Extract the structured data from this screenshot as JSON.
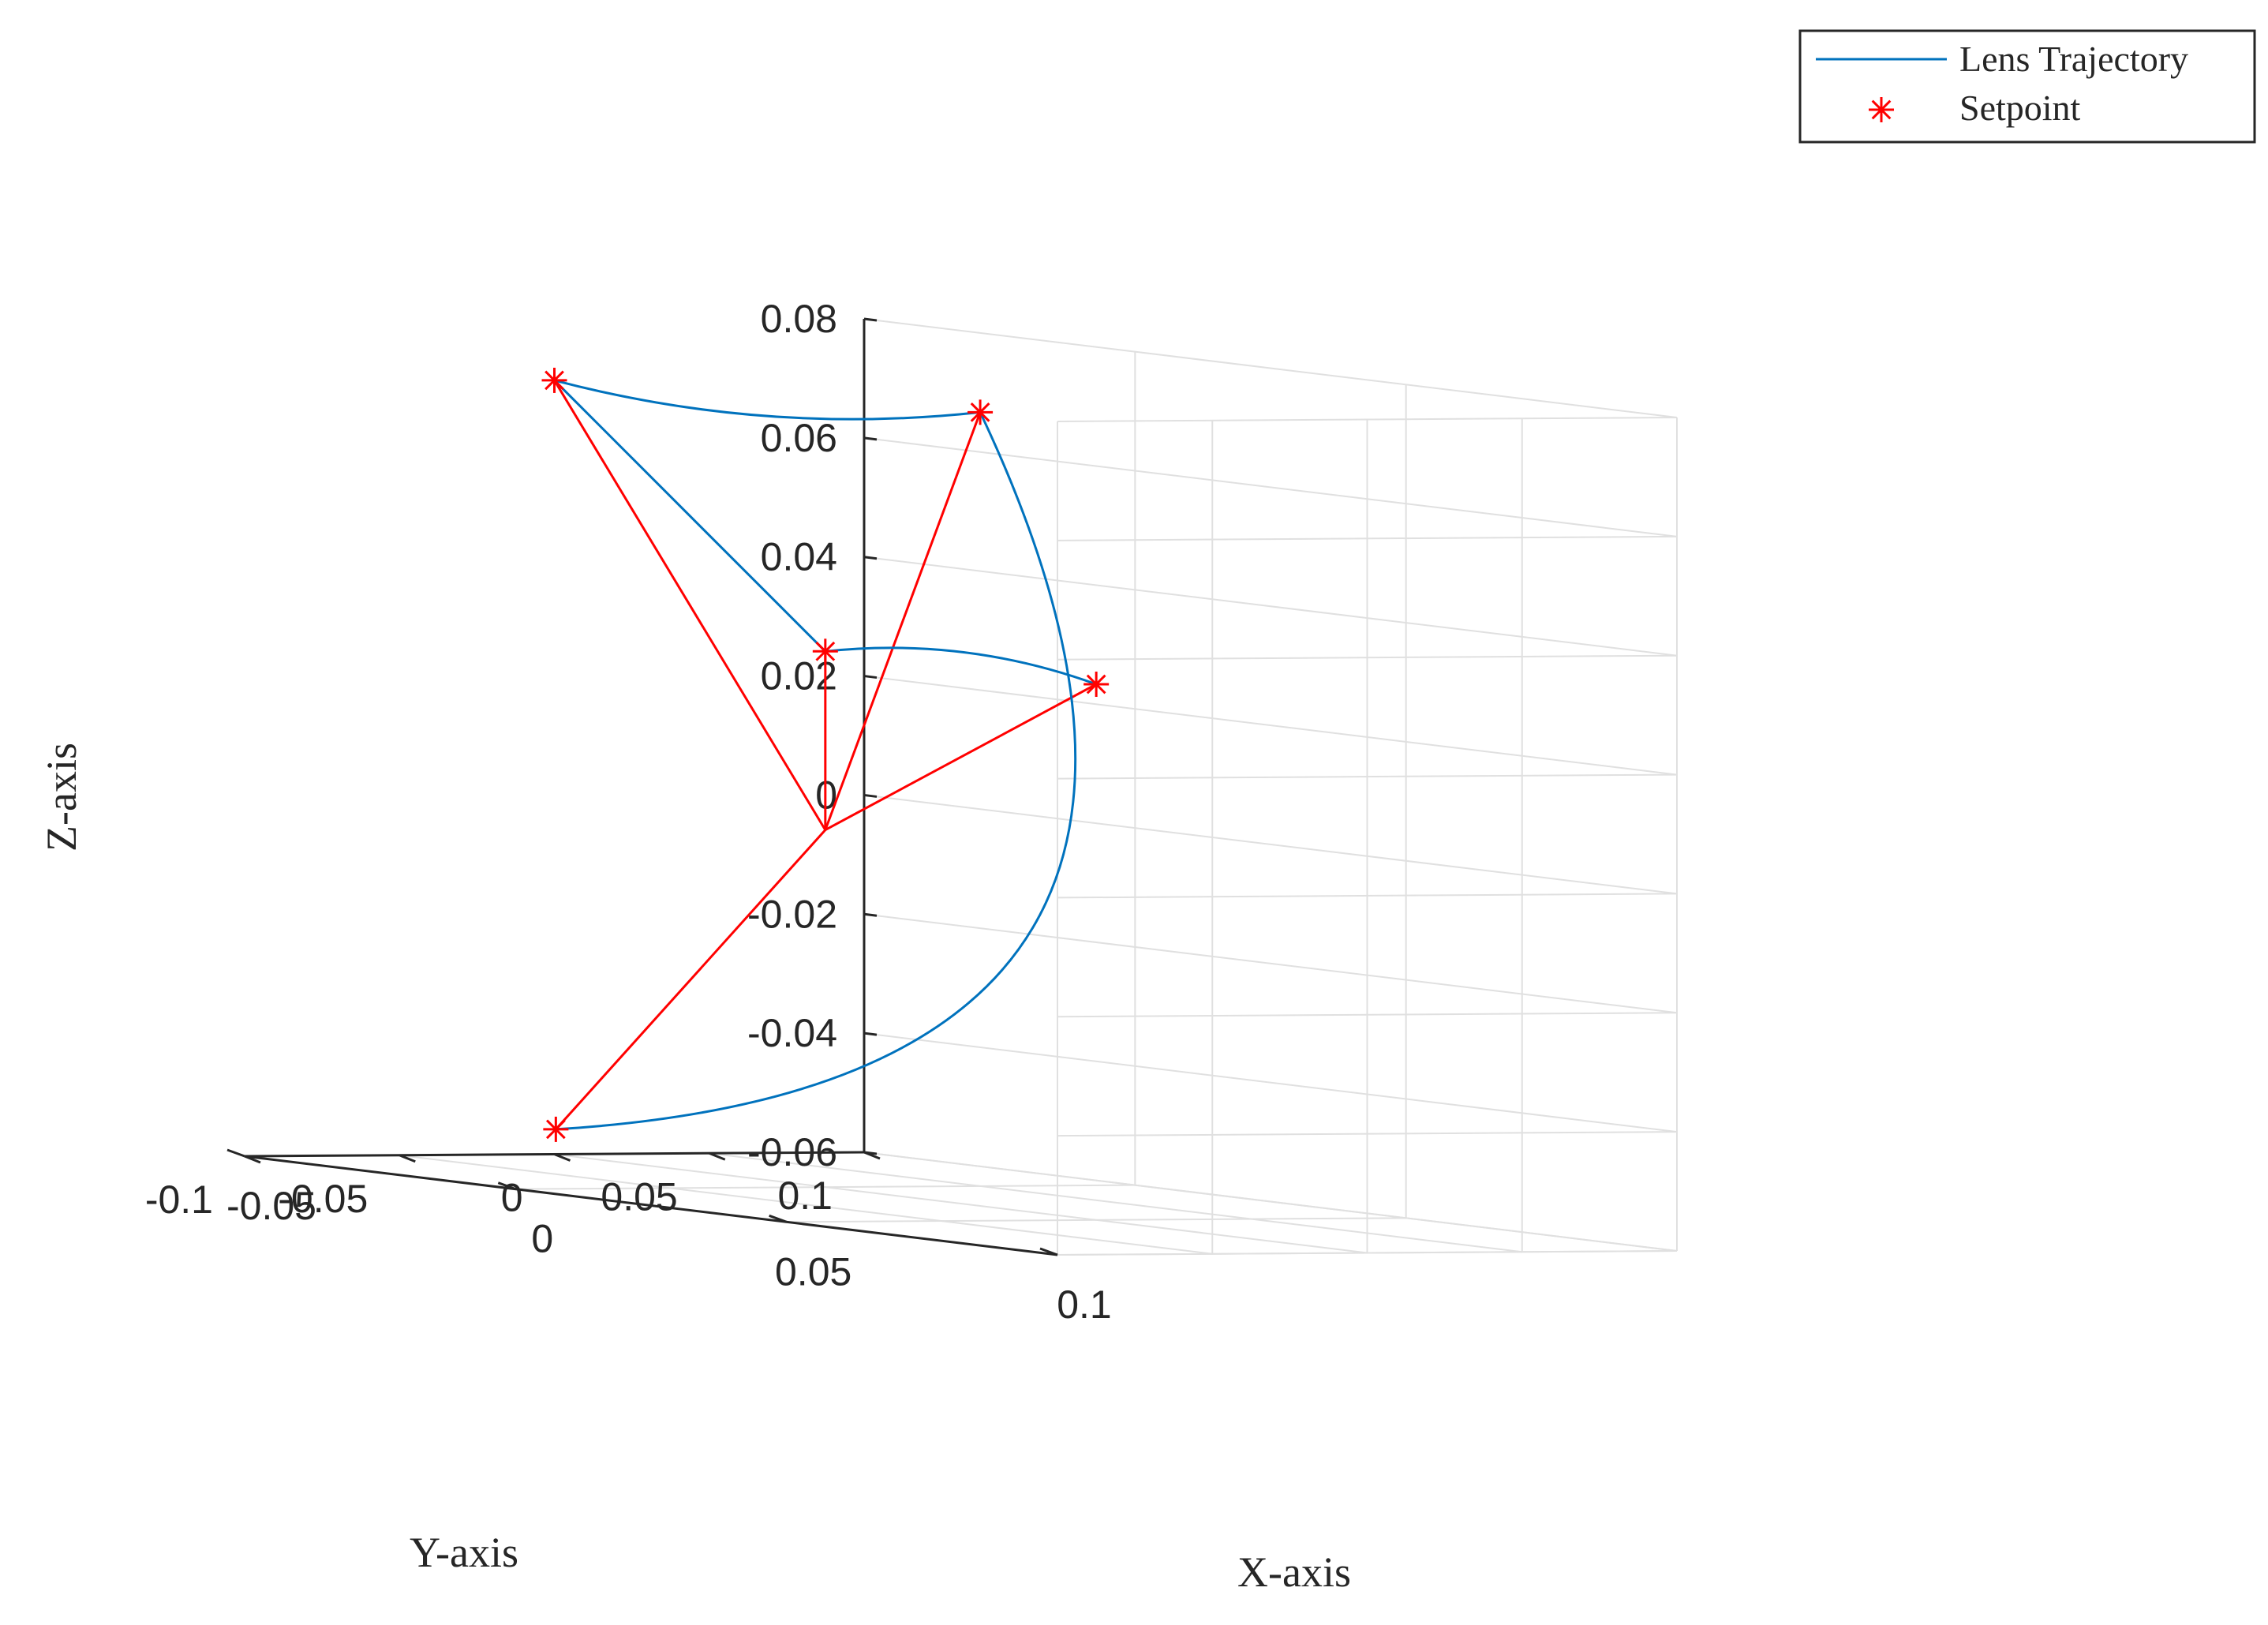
{
  "chart_data": {
    "type": "line3d",
    "xlabel": "X-axis",
    "ylabel": "Y-axis",
    "zlabel": "Z-axis",
    "xlim": [
      -0.05,
      0.1
    ],
    "ylim": [
      -0.1,
      0.1
    ],
    "zlim": [
      -0.06,
      0.08
    ],
    "x_ticks": [
      "-0.05",
      "0",
      "0.05",
      "0.1"
    ],
    "y_ticks": [
      "-0.1",
      "-0.05",
      "0",
      "0.05",
      "0.1"
    ],
    "z_ticks": [
      "-0.06",
      "-0.04",
      "-0.02",
      "0",
      "0.02",
      "0.04",
      "0.06",
      "0.08"
    ],
    "grid": true,
    "legend": {
      "placement": "top-right",
      "entries": [
        {
          "name": "Lens Trajectory",
          "color": "#0072BD",
          "marker": "line"
        },
        {
          "name": "Setpoint",
          "color": "#FF0000",
          "marker": "asterisk"
        }
      ]
    },
    "origin": [
      0,
      0,
      0
    ],
    "setpoints": [
      {
        "x": -0.05,
        "y": 0.0,
        "z": 0.07
      },
      {
        "x": 0.0,
        "y": 0.05,
        "z": 0.07
      },
      {
        "x": 0.0,
        "y": 0.0,
        "z": 0.03
      },
      {
        "x": 0.05,
        "y": 0.0,
        "z": 0.03
      },
      {
        "x": 0.0,
        "y": -0.087,
        "z": -0.05
      }
    ],
    "trajectory_segments": [
      {
        "from": 0,
        "to": 1,
        "shape": "arc"
      },
      {
        "from": 1,
        "to": 4,
        "shape": "arc"
      },
      {
        "from": 0,
        "to": 2,
        "shape": "straight"
      },
      {
        "from": 2,
        "to": 3,
        "shape": "arc"
      }
    ]
  },
  "colors": {
    "trajectory": "#0072BD",
    "setpoint": "#FF0000",
    "axis": "#262626",
    "grid": "#e0e0e0"
  }
}
